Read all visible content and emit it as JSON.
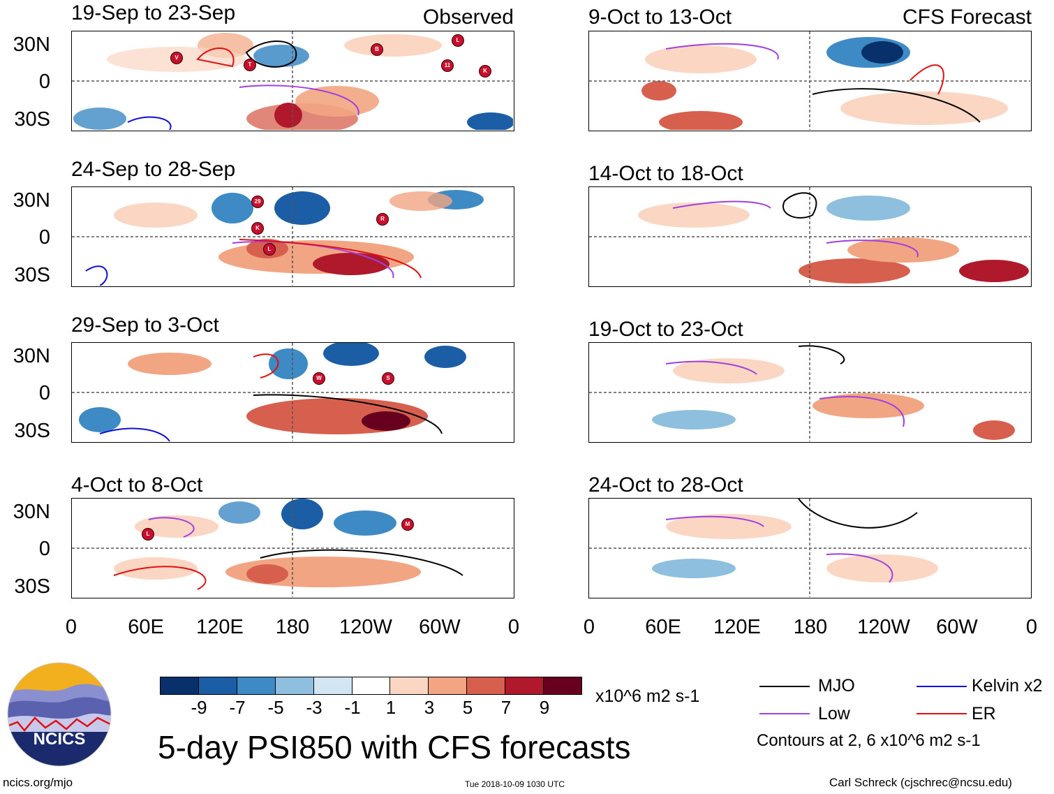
{
  "observed_label": "Observed",
  "forecast_label": "CFS Forecast",
  "panels": [
    {
      "title": "19-Sep to 23-Sep",
      "side": "observed"
    },
    {
      "title": "24-Sep to 28-Sep",
      "side": "observed"
    },
    {
      "title": "29-Sep to 3-Oct",
      "side": "observed"
    },
    {
      "title": "4-Oct to 8-Oct",
      "side": "observed"
    },
    {
      "title": "9-Oct to 13-Oct",
      "side": "forecast"
    },
    {
      "title": "14-Oct to 18-Oct",
      "side": "forecast"
    },
    {
      "title": "19-Oct to 23-Oct",
      "side": "forecast"
    },
    {
      "title": "24-Oct to 28-Oct",
      "side": "forecast"
    }
  ],
  "lat_labels": [
    "30N",
    "0",
    "30S"
  ],
  "lon_labels": [
    "0",
    "60E",
    "120E",
    "180",
    "120W",
    "60W",
    "0"
  ],
  "colorbar": {
    "colors": [
      "#08306b",
      "#1c5ea6",
      "#3d8ac4",
      "#8fbfdf",
      "#d2e5f2",
      "#ffffff",
      "#fbd6c2",
      "#f2a582",
      "#d65f4e",
      "#b0182b",
      "#67001f"
    ],
    "labels": [
      "-9",
      "-7",
      "-5",
      "-3",
      "-1",
      "1",
      "3",
      "5",
      "7",
      "9"
    ],
    "units": "x10^6 m2 s-1"
  },
  "legend": {
    "items": [
      {
        "label": "MJO",
        "color": "#000000"
      },
      {
        "label": "Kelvin x2",
        "color": "#1010d8"
      },
      {
        "label": "Low",
        "color": "#a040e0"
      },
      {
        "label": "ER",
        "color": "#e01010"
      }
    ],
    "note": "Contours at 2, 6 x10^6 m2 s-1"
  },
  "main_title": "5-day PSI850 with CFS forecasts",
  "logo_text": "NCICS",
  "site_url": "ncics.org/mjo",
  "timestamp": "Tue 2018-10-09 1030 UTC",
  "credit": "Carl Schreck (cjschrec@ncsu.edu)",
  "storm_markers": [
    {
      "panel": 0,
      "letter": "V"
    },
    {
      "panel": 0,
      "letter": "T"
    },
    {
      "panel": 0,
      "letter": "B"
    },
    {
      "panel": 0,
      "letter": "L"
    },
    {
      "panel": 0,
      "letter": "11"
    },
    {
      "panel": 0,
      "letter": "K"
    },
    {
      "panel": 1,
      "letter": "29"
    },
    {
      "panel": 1,
      "letter": "K"
    },
    {
      "panel": 1,
      "letter": "R"
    },
    {
      "panel": 1,
      "letter": "L"
    },
    {
      "panel": 2,
      "letter": "W"
    },
    {
      "panel": 2,
      "letter": "S"
    },
    {
      "panel": 3,
      "letter": "L"
    },
    {
      "panel": 3,
      "letter": "M"
    }
  ]
}
